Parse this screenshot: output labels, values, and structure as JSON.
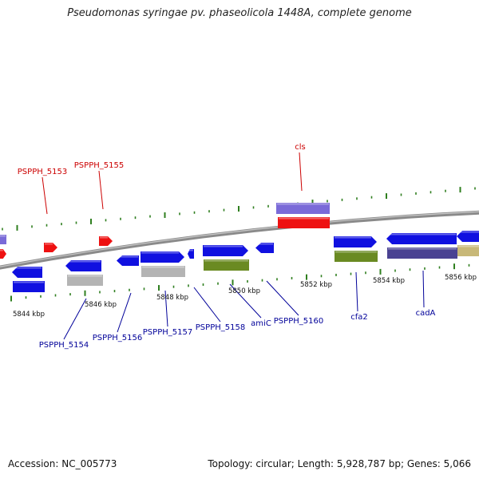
{
  "title": "Pseudomonas syringae pv. phaseolicola 1448A, complete genome",
  "footer": {
    "accession": "Accession: NC_005773",
    "summary": "Topology: circular; Length: 5,928,787 bp; Genes: 5,066"
  },
  "colors": {
    "backbone": "#8a8a8a",
    "tick": "#2f7f1f",
    "gene_blue": "#1010e0",
    "gene_red": "#ee1111",
    "gene_gray": "#b4b4b4",
    "gene_olive": "#6a8a22",
    "gene_lavender": "#7a6ad8",
    "gene_navy": "#4a4292",
    "gene_khaki": "#c8b878",
    "label_top": "#cc0000",
    "label_bottom": "#000099"
  },
  "tick_labels": [
    "5844 kbp",
    "5846 kbp",
    "5848 kbp",
    "5850 kbp",
    "5852 kbp",
    "5854 kbp",
    "5856 kbp"
  ],
  "gene_labels": {
    "top": [
      "PSPPH_5153",
      "PSPPH_5155",
      "cls"
    ],
    "bottom": [
      "PSPPH_5154",
      "PSPPH_5156",
      "PSPPH_5157",
      "PSPPH_5158",
      "amiC",
      "PSPPH_5160",
      "cfa2",
      "cadA"
    ]
  }
}
